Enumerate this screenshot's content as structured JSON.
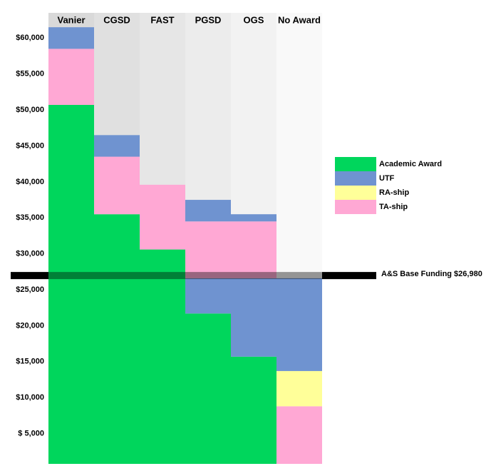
{
  "chart_data": {
    "type": "stacked-bar",
    "categories": [
      "Vanier",
      "CGSD",
      "FAST",
      "PGSD",
      "OGS",
      "No Award"
    ],
    "series": [
      {
        "name": "Academic Award",
        "color": "#00d65c"
      },
      {
        "name": "UTF",
        "color": "#6f93d0"
      },
      {
        "name": "RA-ship",
        "color": "#ffff99"
      },
      {
        "name": "TA-ship",
        "color": "#ffa8d4"
      }
    ],
    "stacks": [
      [
        {
          "series": "Academic Award",
          "value": 50700
        },
        {
          "series": "TA-ship",
          "value": 7800
        },
        {
          "series": "UTF",
          "value": 3000
        }
      ],
      [
        {
          "series": "Academic Award",
          "value": 35500
        },
        {
          "series": "TA-ship",
          "value": 8000
        },
        {
          "series": "UTF",
          "value": 3000
        }
      ],
      [
        {
          "series": "Academic Award",
          "value": 30600
        },
        {
          "series": "TA-ship",
          "value": 9000
        }
      ],
      [
        {
          "series": "Academic Award",
          "value": 21700
        },
        {
          "series": "UTF",
          "value": 4900
        },
        {
          "series": "TA-ship",
          "value": 7900
        },
        {
          "series": "UTF",
          "value": 3000
        }
      ],
      [
        {
          "series": "Academic Award",
          "value": 15700
        },
        {
          "series": "UTF",
          "value": 10900
        },
        {
          "series": "TA-ship",
          "value": 7900
        },
        {
          "series": "UTF",
          "value": 1000
        }
      ],
      [
        {
          "series": "TA-ship",
          "value": 8800
        },
        {
          "series": "RA-ship",
          "value": 4900
        },
        {
          "series": "UTF",
          "value": 12900
        }
      ]
    ],
    "column_colors": [
      "#d9d9d9",
      "#e0e0e0",
      "#e6e6e6",
      "#ececec",
      "#f2f2f2",
      "#f9f9f9"
    ],
    "reference_line": {
      "value": 26980,
      "label": "A&S Base Funding $26,980"
    },
    "ylim": [
      0,
      63500
    ],
    "yticks": [
      {
        "value": 5000,
        "label": "$  5,000"
      },
      {
        "value": 10000,
        "label": "$10,000"
      },
      {
        "value": 15000,
        "label": "$15,000"
      },
      {
        "value": 20000,
        "label": "$20,000"
      },
      {
        "value": 25000,
        "label": "$25,000"
      },
      {
        "value": 30000,
        "label": "$30,000"
      },
      {
        "value": 35000,
        "label": "$35,000"
      },
      {
        "value": 40000,
        "label": "$40,000"
      },
      {
        "value": 45000,
        "label": "$45,000"
      },
      {
        "value": 50000,
        "label": "$50,000"
      },
      {
        "value": 55000,
        "label": "$55,000"
      },
      {
        "value": 60000,
        "label": "$60,000"
      }
    ],
    "legend": "right"
  }
}
